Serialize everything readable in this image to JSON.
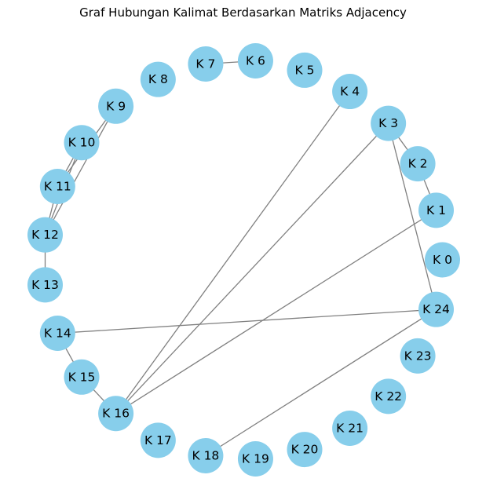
{
  "title": "Graf Hubungan Kalimat Berdasarkan Matriks Adjacency",
  "colors": {
    "node": "#87ceeb",
    "edge": "#808080",
    "text": "#000000"
  },
  "nodes": [
    {
      "id": 0,
      "label": "K 0"
    },
    {
      "id": 1,
      "label": "K 1"
    },
    {
      "id": 2,
      "label": "K 2"
    },
    {
      "id": 3,
      "label": "K 3"
    },
    {
      "id": 4,
      "label": "K 4"
    },
    {
      "id": 5,
      "label": "K 5"
    },
    {
      "id": 6,
      "label": "K 6"
    },
    {
      "id": 7,
      "label": "K 7"
    },
    {
      "id": 8,
      "label": "K 8"
    },
    {
      "id": 9,
      "label": "K 9"
    },
    {
      "id": 10,
      "label": "K 10"
    },
    {
      "id": 11,
      "label": "K 11"
    },
    {
      "id": 12,
      "label": "K 12"
    },
    {
      "id": 13,
      "label": "K 13"
    },
    {
      "id": 14,
      "label": "K 14"
    },
    {
      "id": 15,
      "label": "K 15"
    },
    {
      "id": 16,
      "label": "K 16"
    },
    {
      "id": 17,
      "label": "K 17"
    },
    {
      "id": 18,
      "label": "K 18"
    },
    {
      "id": 19,
      "label": "K 19"
    },
    {
      "id": 20,
      "label": "K 20"
    },
    {
      "id": 21,
      "label": "K 21"
    },
    {
      "id": 22,
      "label": "K 22"
    },
    {
      "id": 23,
      "label": "K 23"
    },
    {
      "id": 24,
      "label": "K 24"
    }
  ],
  "edges": [
    [
      6,
      7
    ],
    [
      2,
      3
    ],
    [
      1,
      2
    ],
    [
      3,
      24
    ],
    [
      3,
      16
    ],
    [
      4,
      16
    ],
    [
      1,
      16
    ],
    [
      9,
      11
    ],
    [
      9,
      12
    ],
    [
      10,
      11
    ],
    [
      10,
      12
    ],
    [
      11,
      12
    ],
    [
      12,
      13
    ],
    [
      14,
      15
    ],
    [
      15,
      16
    ],
    [
      14,
      24
    ],
    [
      18,
      24
    ]
  ]
}
